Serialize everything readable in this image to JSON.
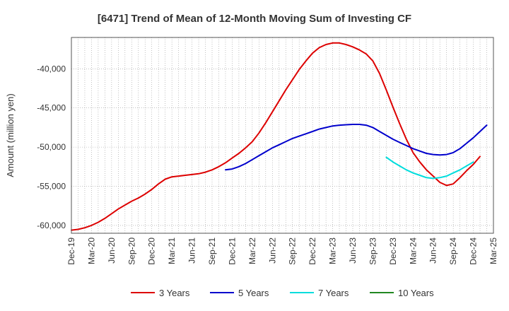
{
  "chart_data": {
    "type": "line",
    "title": "[6471]  Trend of Mean of 12-Month Moving Sum of Investing CF",
    "xlabel": "",
    "ylabel": "Amount (million yen)",
    "ylim": [
      -61000,
      -36000
    ],
    "yticks": [
      -60000,
      -55000,
      -50000,
      -45000,
      -40000
    ],
    "ytick_labels": [
      "-60,000",
      "-55,000",
      "-50,000",
      "-45,000",
      "-40,000"
    ],
    "x_start": "2019-12",
    "x_end": "2025-03",
    "xticks": [
      "Dec-19",
      "Mar-20",
      "Jun-20",
      "Sep-20",
      "Dec-20",
      "Mar-21",
      "Jun-21",
      "Sep-21",
      "Dec-21",
      "Mar-22",
      "Jun-22",
      "Sep-22",
      "Dec-22",
      "Mar-23",
      "Jun-23",
      "Sep-23",
      "Dec-23",
      "Mar-24",
      "Jun-24",
      "Sep-24",
      "Dec-24",
      "Mar-25"
    ],
    "grid": true,
    "legend_position": "bottom",
    "series": [
      {
        "name": "3 Years",
        "color": "#dd0000",
        "start": "2019-12",
        "values": [
          -60600,
          -60500,
          -60300,
          -60000,
          -59600,
          -59100,
          -58500,
          -57900,
          -57400,
          -56900,
          -56500,
          -56000,
          -55400,
          -54700,
          -54100,
          -53800,
          -53700,
          -53600,
          -53500,
          -53400,
          -53200,
          -52900,
          -52500,
          -52000,
          -51400,
          -50800,
          -50100,
          -49300,
          -48200,
          -46900,
          -45500,
          -44100,
          -42700,
          -41400,
          -40100,
          -39000,
          -38000,
          -37300,
          -36900,
          -36700,
          -36700,
          -36900,
          -37200,
          -37600,
          -38100,
          -39000,
          -40600,
          -42700,
          -44900,
          -47000,
          -49000,
          -50700,
          -51900,
          -52900,
          -53700,
          -54500,
          -54900,
          -54700,
          -53900,
          -53000,
          -52200,
          -51200
        ]
      },
      {
        "name": "5 Years",
        "color": "#0000cc",
        "start": "2021-11",
        "values": [
          -52900,
          -52800,
          -52500,
          -52100,
          -51600,
          -51100,
          -50600,
          -50100,
          -49700,
          -49300,
          -48900,
          -48600,
          -48300,
          -48000,
          -47700,
          -47500,
          -47300,
          -47200,
          -47150,
          -47100,
          -47100,
          -47200,
          -47500,
          -48000,
          -48500,
          -49000,
          -49400,
          -49800,
          -50200,
          -50500,
          -50800,
          -50950,
          -51000,
          -50950,
          -50700,
          -50200,
          -49500,
          -48800,
          -48000,
          -47200
        ]
      },
      {
        "name": "7 Years",
        "color": "#00dddd",
        "start": "2023-11",
        "values": [
          -51300,
          -51900,
          -52400,
          -52900,
          -53300,
          -53600,
          -53900,
          -54000,
          -53900,
          -53700,
          -53300,
          -52900,
          -52400,
          -51900
        ]
      },
      {
        "name": "10 Years",
        "color": "#228822",
        "start": "2025-03",
        "values": []
      }
    ]
  }
}
